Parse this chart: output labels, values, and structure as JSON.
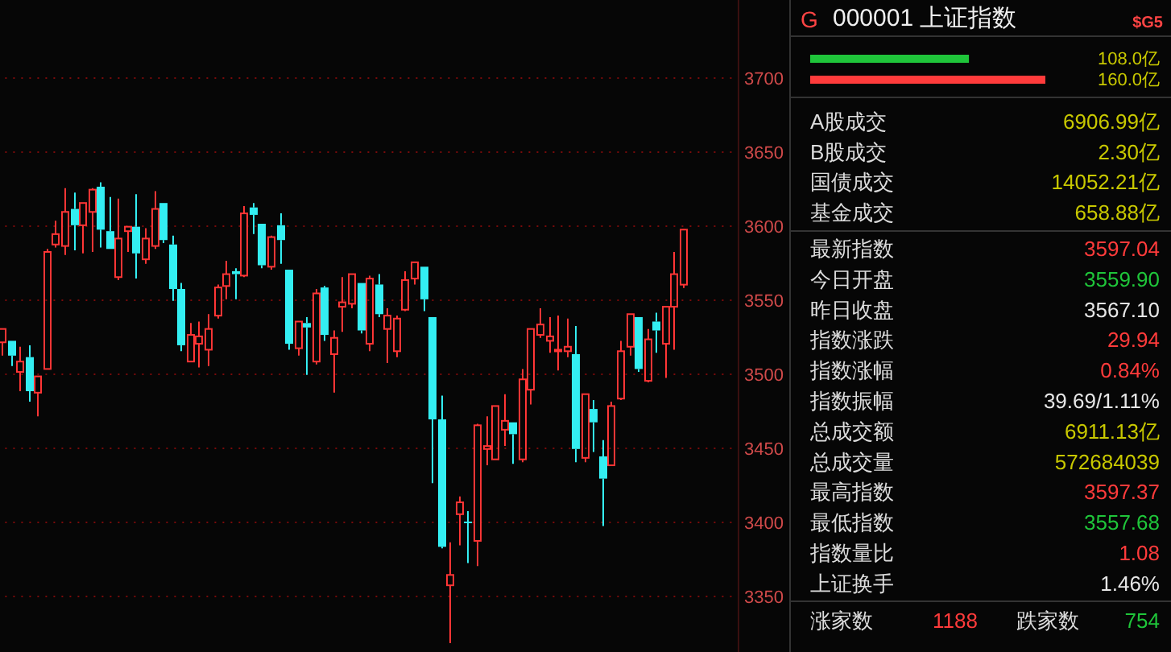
{
  "chart_data": [
    {
      "type": "candlestick",
      "categories": [
        null,
        null,
        null,
        null,
        null,
        null,
        null,
        null,
        null,
        null,
        null,
        null,
        null,
        null,
        null,
        null,
        null,
        null,
        null,
        null,
        null,
        null,
        null,
        null,
        null,
        null,
        null,
        null,
        null,
        null,
        null,
        null,
        null,
        null,
        null,
        null,
        null,
        null,
        null,
        null,
        null,
        null,
        null,
        null,
        null,
        null,
        null,
        null,
        null,
        null,
        null,
        null,
        null,
        null,
        null,
        null,
        null,
        null,
        null,
        null,
        null,
        null,
        null,
        null,
        null,
        null,
        null,
        null,
        null,
        null,
        null,
        null,
        null,
        null,
        null,
        null,
        null,
        null,
        null,
        null,
        null,
        null
      ],
      "ohlc": [
        [
          3521,
          3530,
          3512,
          3530
        ],
        [
          3522,
          3522,
          3505,
          3512
        ],
        [
          3501,
          3518,
          3488,
          3508
        ],
        [
          3511,
          3519,
          3481,
          3488
        ],
        [
          3487,
          3498,
          3471,
          3498
        ],
        [
          3503,
          3584,
          3503,
          3582
        ],
        [
          3587,
          3603,
          3585,
          3594
        ],
        [
          3586,
          3625,
          3580,
          3609
        ],
        [
          3611,
          3622,
          3583,
          3600
        ],
        [
          3600,
          3615,
          3581,
          3615
        ],
        [
          3609,
          3625,
          3582,
          3624
        ],
        [
          3626,
          3629,
          3585,
          3597
        ],
        [
          3596,
          3619,
          3584,
          3584
        ],
        [
          3565,
          3618,
          3563,
          3591
        ],
        [
          3596,
          3599,
          3582,
          3599
        ],
        [
          3599,
          3621,
          3564,
          3581
        ],
        [
          3577,
          3598,
          3574,
          3591
        ],
        [
          3586,
          3623,
          3584,
          3611
        ],
        [
          3615,
          3615,
          3588,
          3590
        ],
        [
          3587,
          3593,
          3549,
          3557
        ],
        [
          3557,
          3561,
          3515,
          3519
        ],
        [
          3508,
          3534,
          3508,
          3526
        ],
        [
          3520,
          3535,
          3504,
          3525
        ],
        [
          3516,
          3540,
          3505,
          3530
        ],
        [
          3539,
          3560,
          3537,
          3558
        ],
        [
          3559,
          3576,
          3550,
          3567
        ],
        [
          3569,
          3571,
          3550,
          3567
        ],
        [
          3566,
          3613,
          3565,
          3608
        ],
        [
          3612,
          3615,
          3594,
          3607
        ],
        [
          3601,
          3601,
          3571,
          3573
        ],
        [
          3572,
          3593,
          3570,
          3592
        ],
        [
          3600,
          3608,
          3574,
          3590
        ],
        [
          3570,
          3570,
          3516,
          3520
        ],
        [
          3517,
          3535,
          3512,
          3535
        ],
        [
          3534,
          3538,
          3499,
          3531
        ],
        [
          3508,
          3557,
          3506,
          3554
        ],
        [
          3558,
          3559,
          3522,
          3526
        ],
        [
          3513,
          3529,
          3487,
          3524
        ],
        [
          3545,
          3565,
          3528,
          3548
        ],
        [
          3547,
          3567,
          3544,
          3567
        ],
        [
          3561,
          3561,
          3527,
          3529
        ],
        [
          3520,
          3566,
          3515,
          3564
        ],
        [
          3560,
          3567,
          3538,
          3540
        ],
        [
          3530,
          3544,
          3507,
          3539
        ],
        [
          3515,
          3539,
          3511,
          3537
        ],
        [
          3543,
          3569,
          3542,
          3563
        ],
        [
          3564,
          3575,
          3560,
          3575
        ],
        [
          3572,
          3572,
          3542,
          3550
        ],
        [
          3538,
          3538,
          3426,
          3469
        ],
        [
          3469,
          3485,
          3382,
          3383
        ],
        [
          3357,
          3386,
          3318,
          3364
        ],
        [
          3405,
          3417,
          3384,
          3413
        ],
        [
          3400,
          3407,
          3372,
          3399
        ],
        [
          3387,
          3466,
          3370,
          3465
        ],
        [
          3449,
          3471,
          3438,
          3451
        ],
        [
          3442,
          3478,
          3442,
          3478
        ],
        [
          3462,
          3486,
          3451,
          3468
        ],
        [
          3467,
          3467,
          3439,
          3459
        ],
        [
          3442,
          3503,
          3440,
          3496
        ],
        [
          3489,
          3530,
          3479,
          3530
        ],
        [
          3526,
          3544,
          3524,
          3533
        ],
        [
          3522,
          3538,
          3514,
          3525
        ],
        [
          3515,
          3539,
          3502,
          3516
        ],
        [
          3515,
          3537,
          3511,
          3518
        ],
        [
          3513,
          3532,
          3440,
          3449
        ],
        [
          3443,
          3486,
          3440,
          3486
        ],
        [
          3476,
          3482,
          3447,
          3467
        ],
        [
          3444,
          3455,
          3397,
          3429
        ],
        [
          3438,
          3481,
          3438,
          3478
        ],
        [
          3483,
          3522,
          3482,
          3515
        ],
        [
          3518,
          3540,
          3512,
          3540
        ],
        [
          3538,
          3538,
          3501,
          3503
        ],
        [
          3495,
          3530,
          3494,
          3523
        ],
        [
          3535,
          3541,
          3514,
          3529
        ],
        [
          3520,
          3545,
          3497,
          3545
        ],
        [
          3545,
          3582,
          3516,
          3567
        ],
        [
          3559.9,
          3597.37,
          3557.68,
          3597.04
        ],
        null,
        null,
        null,
        null,
        null
      ],
      "ylim": [
        3312,
        3752
      ],
      "yticks": [
        3350,
        3400,
        3450,
        3500,
        3550,
        3600,
        3650,
        3700
      ],
      "grid": "y",
      "tick_labels": "y"
    },
    {
      "type": "bar",
      "orientation": "horizontal",
      "title": "000001 上证指数",
      "annotations": [
        "G",
        "$G5"
      ],
      "categories": [
        null,
        null
      ],
      "values": [
        108.0,
        160.0
      ],
      "value_labels": [
        "108.0亿",
        "160.0亿"
      ],
      "colors": [
        "#1fc53a",
        "#ff3b3b"
      ],
      "tick_labels": false
    },
    {
      "type": "other",
      "categories": [
        "A股成交",
        "B股成交",
        "国债成交",
        "基金成交"
      ],
      "value_labels": [
        "6906.99亿",
        "2.30亿",
        "14052.21亿",
        "658.88亿"
      ],
      "colors": [
        "#c8c800",
        "#c8c800",
        "#c8c800",
        "#c8c800"
      ]
    },
    {
      "type": "other",
      "categories": [
        "最新指数",
        "今日开盘",
        "昨日收盘",
        "指数涨跌",
        "指数涨幅",
        "指数振幅",
        "总成交额",
        "总成交量",
        "最高指数",
        "最低指数",
        "指数量比",
        "上证换手"
      ],
      "value_labels": [
        "3597.04",
        "3559.90",
        "3567.10",
        "29.94",
        "0.84%",
        "39.69/1.11%",
        "6911.13亿",
        "572684039",
        "3597.37",
        "3557.68",
        "1.08",
        "1.46%"
      ],
      "colors": [
        "#ff3b3b",
        "#1fc53a",
        "#e6e6e6",
        "#ff3b3b",
        "#ff3b3b",
        "#e6e6e6",
        "#c8c800",
        "#c8c800",
        "#ff3b3b",
        "#1fc53a",
        "#ff3b3b",
        "#e6e6e6"
      ]
    },
    {
      "type": "other",
      "categories": [
        "涨家数",
        "跌家数"
      ],
      "value_labels": [
        "1188",
        "754"
      ],
      "colors": [
        "#ff3b3b",
        "#1fc53a"
      ]
    }
  ]
}
